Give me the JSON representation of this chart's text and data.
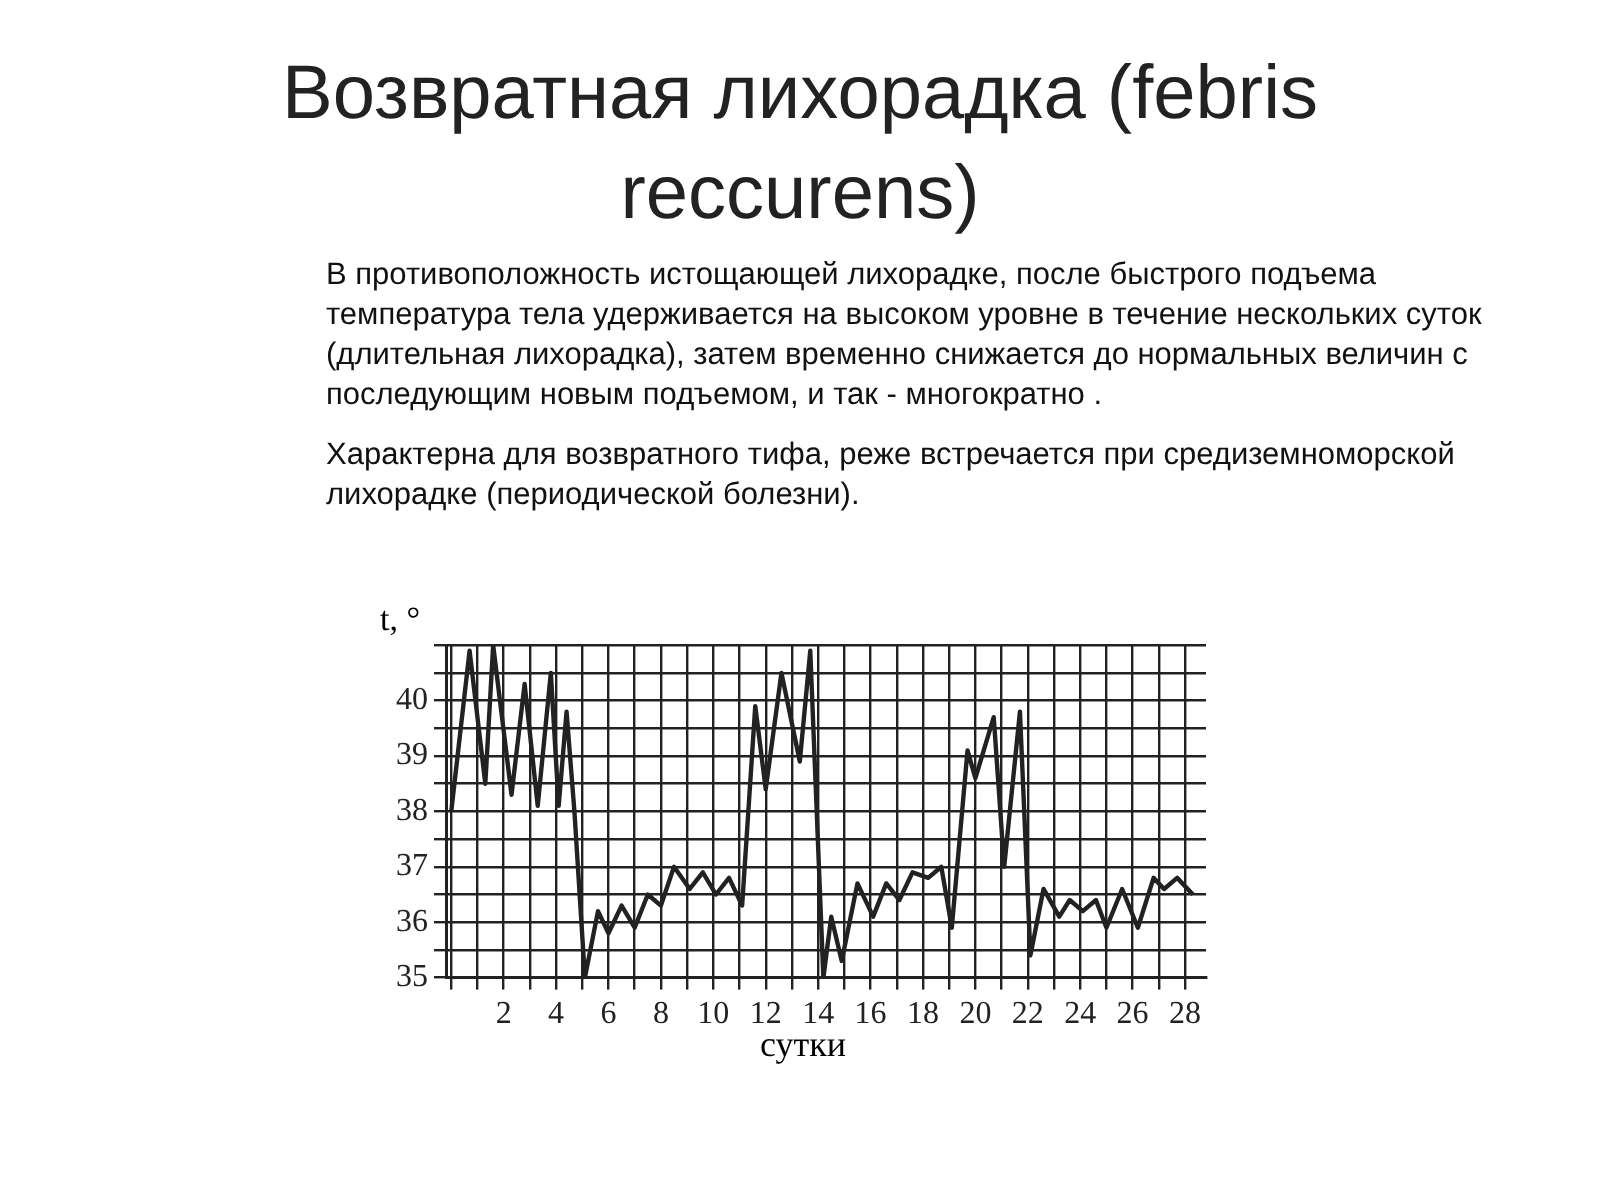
{
  "chart_data": {
    "type": "line",
    "title": "Возвратная лихорадка (febris reccurens)",
    "annotations": [
      "В противоположность истощающей лихорадке, после быстрого подъема температура тела удерживается на высоком уровне в течение нескольких суток (длительная лихорадка), затем временно снижается до нормальных величин с последующим новым подъемом, и так - многократно .",
      "Характерна для возвратного тифа, реже встречается при средиземноморской лихорадке (периодической болезни)."
    ],
    "xlabel": "сутки",
    "ylabel": "t, °",
    "series": [
      {
        "color": "#222222",
        "x": [
          0,
          0.7,
          1.3,
          1.6,
          2.3,
          2.8,
          3.3,
          3.8,
          4.1,
          4.4,
          4.7,
          5.1,
          5.6,
          6.0,
          6.5,
          7.0,
          7.5,
          8.0,
          8.5,
          9.1,
          9.6,
          10.1,
          10.6,
          11.1,
          11.6,
          12.0,
          12.6,
          13.3,
          13.7,
          14.2,
          14.5,
          14.9,
          15.5,
          16.1,
          16.6,
          17.1,
          17.6,
          18.2,
          18.7,
          19.1,
          19.7,
          20.0,
          20.7,
          21.1,
          21.7,
          22.1,
          22.6,
          23.2,
          23.6,
          24.1,
          24.6,
          25.0,
          25.6,
          26.2,
          26.8,
          27.2,
          27.7,
          28.3
        ],
        "values": [
          38.0,
          40.9,
          38.5,
          41.0,
          38.3,
          40.3,
          38.1,
          40.5,
          38.1,
          39.8,
          38.0,
          35.0,
          36.2,
          35.8,
          36.3,
          35.9,
          36.5,
          36.3,
          37.0,
          36.6,
          36.9,
          36.5,
          36.8,
          36.3,
          39.9,
          38.4,
          40.5,
          38.9,
          40.9,
          35.0,
          36.1,
          35.3,
          36.7,
          36.1,
          36.7,
          36.4,
          36.9,
          36.8,
          37.0,
          35.9,
          39.1,
          38.6,
          39.7,
          37.0,
          39.8,
          35.4,
          36.6,
          36.1,
          36.4,
          36.2,
          36.4,
          35.9,
          36.6,
          35.9,
          36.8,
          36.6,
          36.8,
          36.5
        ]
      }
    ],
    "xlim": [
      -0.2,
      28.8
    ],
    "xticks": [
      {
        "value": 0,
        "label": null
      },
      {
        "value": 1,
        "label": null
      },
      2,
      {
        "value": 3,
        "label": null
      },
      4,
      {
        "value": 5,
        "label": null
      },
      6,
      {
        "value": 7,
        "label": null
      },
      8,
      {
        "value": 9,
        "label": null
      },
      10,
      {
        "value": 11,
        "label": null
      },
      12,
      {
        "value": 13,
        "label": null
      },
      14,
      {
        "value": 15,
        "label": null
      },
      16,
      {
        "value": 17,
        "label": null
      },
      18,
      {
        "value": 19,
        "label": null
      },
      20,
      {
        "value": 21,
        "label": null
      },
      22,
      {
        "value": 23,
        "label": null
      },
      24,
      {
        "value": 25,
        "label": null
      },
      26,
      {
        "value": 27,
        "label": null
      },
      28
    ],
    "ylim": [
      35,
      41
    ],
    "yticks": [
      35,
      {
        "value": 35.5,
        "label": null
      },
      36,
      {
        "value": 36.5,
        "label": null
      },
      37,
      {
        "value": 37.5,
        "label": null
      },
      38,
      {
        "value": 38.5,
        "label": null
      },
      39,
      {
        "value": 39.5,
        "label": null
      },
      40,
      {
        "value": 40.5,
        "label": null
      },
      {
        "value": 41,
        "label": null
      }
    ],
    "grid": true,
    "legend": false,
    "marker": "none",
    "line_style": "solid"
  }
}
